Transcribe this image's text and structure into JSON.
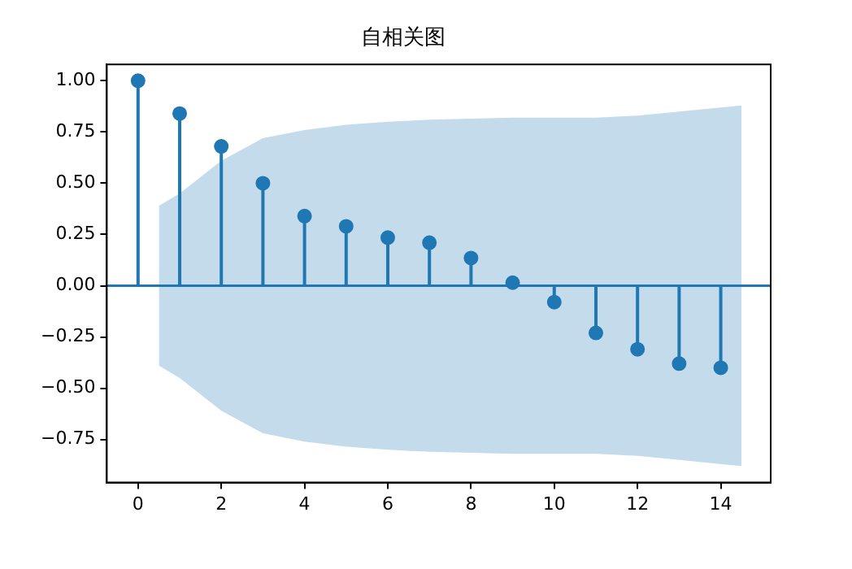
{
  "chart_data": {
    "type": "lollipop",
    "title": "自相关图",
    "x": [
      0,
      1,
      2,
      3,
      4,
      5,
      6,
      7,
      8,
      9,
      10,
      11,
      12,
      13,
      14
    ],
    "series": [
      {
        "color": "#1f77b4",
        "marker": "circle",
        "values": [
          1.0,
          0.84,
          0.68,
          0.5,
          0.34,
          0.29,
          0.235,
          0.21,
          0.135,
          0.015,
          -0.08,
          -0.23,
          -0.31,
          -0.38,
          -0.4
        ]
      },
      {
        "type": "line",
        "color": "#1f77b4",
        "marker": "none",
        "x": [
          -0.75,
          0.5,
          1,
          2,
          3,
          4,
          5,
          6,
          7,
          8,
          9,
          10,
          11,
          12,
          13,
          14.5,
          15.2
        ],
        "values": [
          0,
          0,
          0,
          0,
          0,
          0,
          0,
          0,
          0,
          0,
          0,
          0,
          0,
          0,
          0,
          0,
          0
        ],
        "lower": [
          null,
          -0.39,
          -0.45,
          -0.61,
          -0.72,
          -0.76,
          -0.785,
          -0.8,
          -0.81,
          -0.815,
          -0.82,
          -0.82,
          -0.82,
          -0.83,
          -0.85,
          -0.88,
          null
        ],
        "upper": [
          null,
          0.39,
          0.45,
          0.61,
          0.72,
          0.76,
          0.785,
          0.8,
          0.81,
          0.815,
          0.82,
          0.82,
          0.82,
          0.83,
          0.85,
          0.88,
          null
        ]
      }
    ],
    "xlim": [
      -0.75,
      15.2
    ],
    "xticks": [
      0,
      2,
      4,
      6,
      8,
      10,
      12,
      14
    ],
    "ylim": [
      -0.96,
      1.08
    ],
    "yticks": [
      {
        "value": -0.75,
        "label": "−0.75"
      },
      {
        "value": -0.5,
        "label": "−0.50"
      },
      {
        "value": -0.25,
        "label": "−0.25"
      },
      {
        "value": 0,
        "label": "0.00"
      },
      {
        "value": 0.25,
        "label": "0.25"
      },
      {
        "value": 0.5,
        "label": "0.50"
      },
      {
        "value": 0.75,
        "label": "0.75"
      },
      {
        "value": 1,
        "label": "1.00"
      }
    ],
    "grid": false,
    "legend": false
  }
}
